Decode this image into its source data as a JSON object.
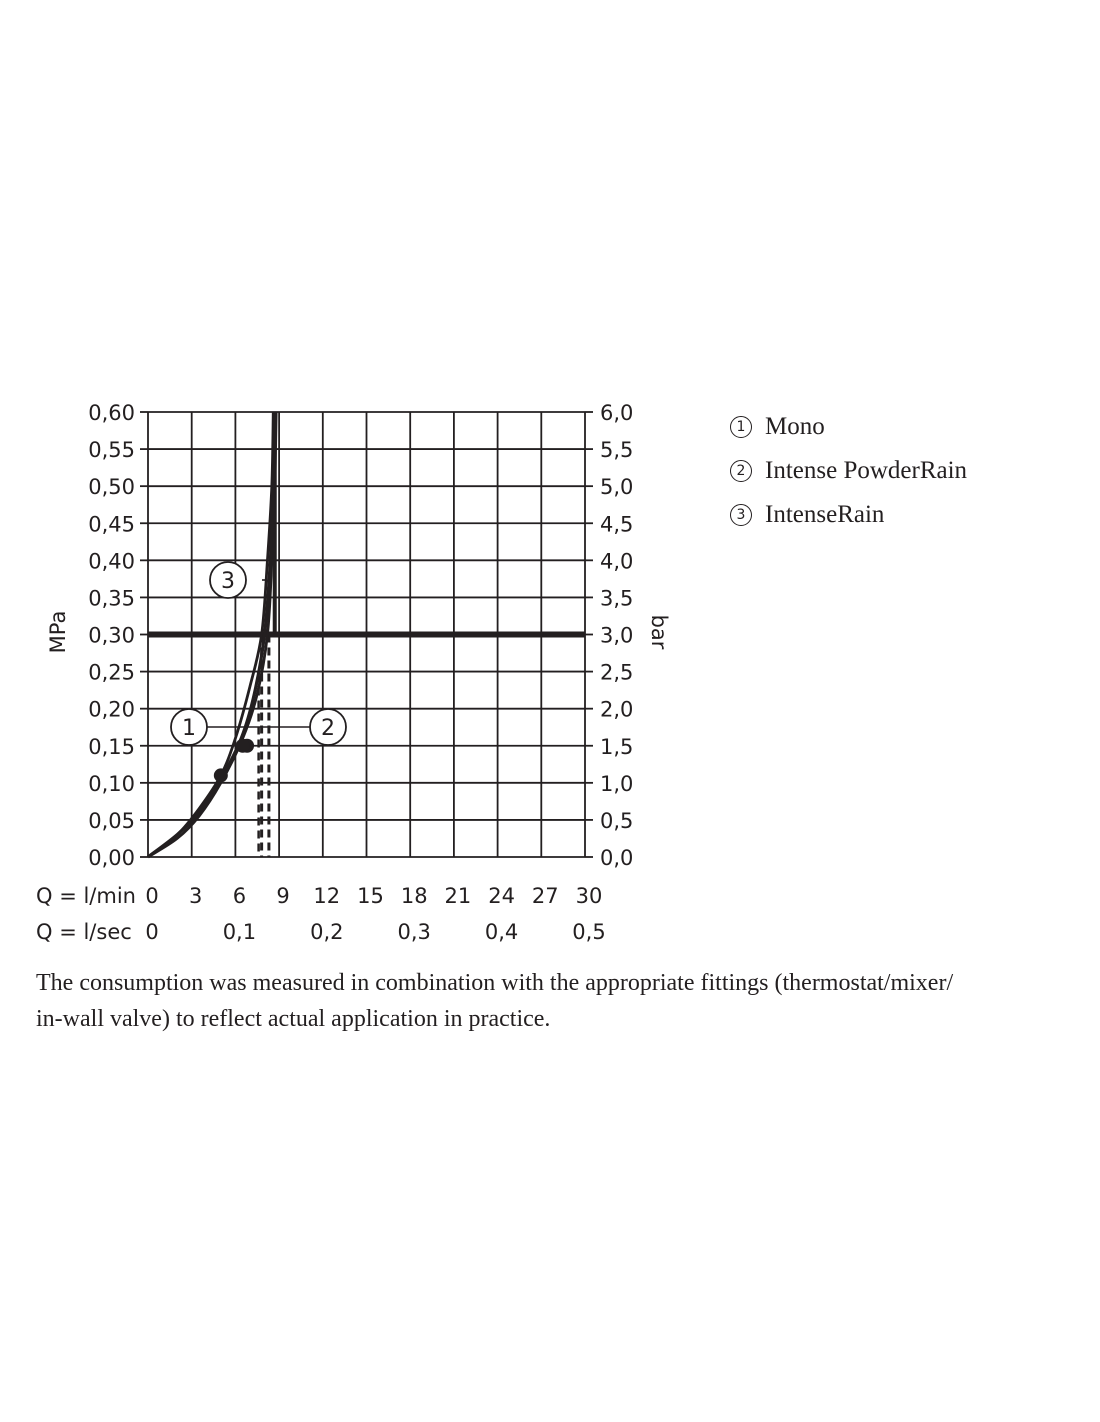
{
  "chart_data": {
    "type": "line",
    "x_axis": {
      "primary_label": "Q = l/min",
      "primary_ticks": [
        "0",
        "3",
        "6",
        "9",
        "12",
        "15",
        "18",
        "21",
        "24",
        "27",
        "30"
      ],
      "secondary_label": "Q = l/sec",
      "secondary_ticks": [
        "0",
        "0,1",
        "0,2",
        "0,3",
        "0,4",
        "0,5"
      ],
      "xlim": [
        0,
        30
      ]
    },
    "y_axis_left": {
      "label": "MPa",
      "ticks": [
        "0,00",
        "0,05",
        "0,10",
        "0,15",
        "0,20",
        "0,25",
        "0,30",
        "0,35",
        "0,40",
        "0,45",
        "0,50",
        "0,55",
        "0,60"
      ],
      "ylim": [
        0,
        0.6
      ]
    },
    "y_axis_right": {
      "label": "bar",
      "ticks": [
        "0,0",
        "0,5",
        "1,0",
        "1,5",
        "2,0",
        "2,5",
        "3,0",
        "3,5",
        "4,0",
        "4,5",
        "5,0",
        "5,5",
        "6,0"
      ],
      "ylim": [
        0,
        6
      ]
    },
    "grid": true,
    "reference_line": {
      "pressure_mpa": 0.3
    },
    "series": [
      {
        "name": "Mono",
        "marker": "1",
        "points": [
          [
            0,
            0
          ],
          [
            2,
            0.03
          ],
          [
            3.5,
            0.065
          ],
          [
            5,
            0.11
          ],
          [
            6,
            0.16
          ],
          [
            7,
            0.23
          ],
          [
            7.8,
            0.3
          ],
          [
            8.2,
            0.4
          ],
          [
            8.5,
            0.5
          ],
          [
            8.6,
            0.6
          ]
        ],
        "highlight": [
          5,
          0.11
        ]
      },
      {
        "name": "Intense PowderRain",
        "marker": "2",
        "points": [
          [
            0,
            0
          ],
          [
            2,
            0.025
          ],
          [
            3.5,
            0.055
          ],
          [
            5,
            0.1
          ],
          [
            6.5,
            0.16
          ],
          [
            7.5,
            0.22
          ],
          [
            8.2,
            0.3
          ],
          [
            8.5,
            0.4
          ],
          [
            8.7,
            0.5
          ],
          [
            8.8,
            0.6
          ]
        ],
        "highlight": [
          6.8,
          0.15
        ],
        "reference_flow_lpm": [
          7.8,
          8.3
        ]
      },
      {
        "name": "IntenseRain",
        "marker": "3",
        "points": [
          [
            0,
            0
          ],
          [
            2,
            0.03
          ],
          [
            3.5,
            0.06
          ],
          [
            5,
            0.105
          ],
          [
            6.4,
            0.16
          ],
          [
            7.3,
            0.22
          ],
          [
            8,
            0.3
          ],
          [
            8.4,
            0.4
          ],
          [
            8.6,
            0.5
          ],
          [
            8.7,
            0.6
          ]
        ],
        "highlight": [
          6.5,
          0.15
        ]
      }
    ]
  },
  "legend": [
    {
      "marker": "1",
      "label": "Mono"
    },
    {
      "marker": "2",
      "label": "Intense PowderRain"
    },
    {
      "marker": "3",
      "label": "IntenseRain"
    }
  ],
  "footnote": {
    "line1": "The consumption was measured in combination with the appropriate fittings (thermostat/mixer/",
    "line2": "in-wall valve) to reflect actual application in practice."
  },
  "colors": {
    "ink": "#231f20",
    "background": "#ffffff"
  }
}
